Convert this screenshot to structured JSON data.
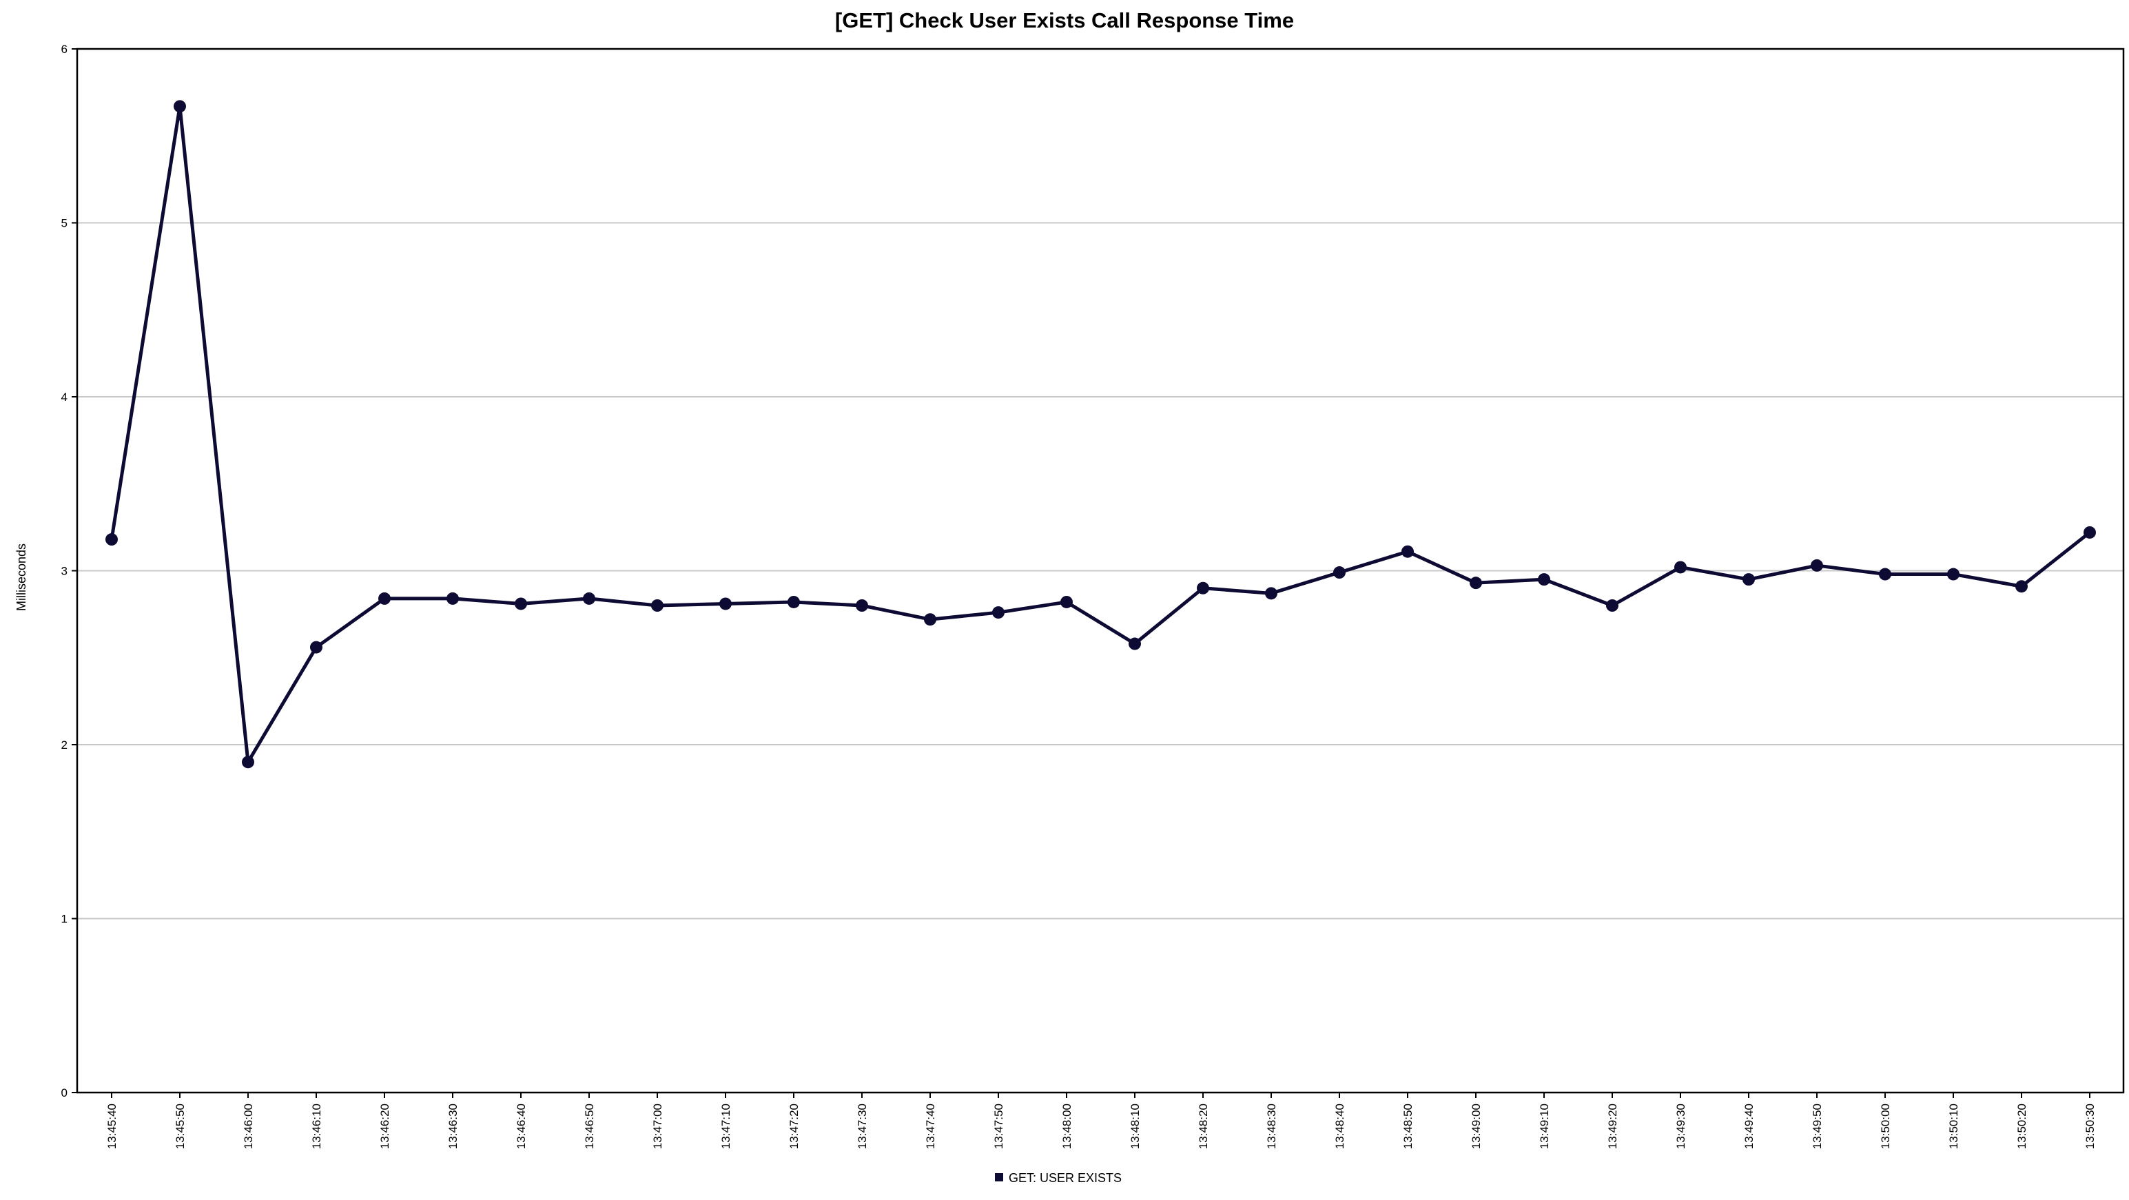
{
  "chart_data": {
    "type": "line",
    "title": "[GET] Check User Exists Call Response Time",
    "xlabel": "",
    "ylabel": "Milliseconds",
    "ylim": [
      0,
      6
    ],
    "yticks": [
      "0",
      "1",
      "2",
      "3",
      "4",
      "5",
      "6"
    ],
    "grid": true,
    "legend_position": "bottom-center",
    "categories": [
      "13:45:40",
      "13:45:50",
      "13:46:00",
      "13:46:10",
      "13:46:20",
      "13:46:30",
      "13:46:40",
      "13:46:50",
      "13:47:00",
      "13:47:10",
      "13:47:20",
      "13:47:30",
      "13:47:40",
      "13:47:50",
      "13:48:00",
      "13:48:10",
      "13:48:20",
      "13:48:30",
      "13:48:40",
      "13:48:50",
      "13:49:00",
      "13:49:10",
      "13:49:20",
      "13:49:30",
      "13:49:40",
      "13:49:50",
      "13:50:00",
      "13:50:10",
      "13:50:20",
      "13:50:30"
    ],
    "series": [
      {
        "name": "GET: USER EXISTS",
        "color": "#0d0b33",
        "values": [
          3.18,
          5.67,
          1.9,
          2.56,
          2.84,
          2.84,
          2.81,
          2.84,
          2.8,
          2.81,
          2.82,
          2.8,
          2.72,
          2.76,
          2.82,
          2.58,
          2.9,
          2.87,
          2.99,
          3.11,
          2.93,
          2.95,
          2.8,
          3.02,
          2.95,
          3.03,
          2.98,
          2.98,
          2.91,
          3.22
        ]
      }
    ]
  }
}
